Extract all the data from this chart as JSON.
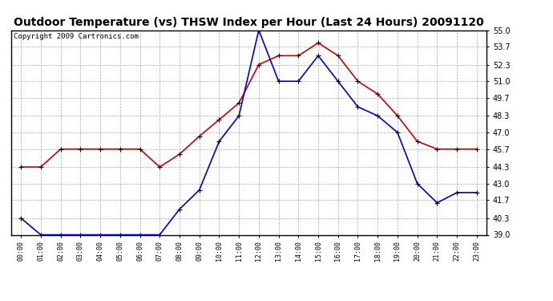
{
  "title": "Outdoor Temperature (vs) THSW Index per Hour (Last 24 Hours) 20091120",
  "copyright": "Copyright 2009 Cartronics.com",
  "hours": [
    "00:00",
    "01:00",
    "02:00",
    "03:00",
    "04:00",
    "05:00",
    "06:00",
    "07:00",
    "08:00",
    "09:00",
    "10:00",
    "11:00",
    "12:00",
    "13:00",
    "14:00",
    "15:00",
    "16:00",
    "17:00",
    "18:00",
    "19:00",
    "20:00",
    "21:00",
    "22:00",
    "23:00"
  ],
  "temp_blue": [
    40.3,
    39.0,
    39.0,
    39.0,
    39.0,
    39.0,
    39.0,
    39.0,
    41.0,
    42.5,
    46.3,
    48.3,
    55.0,
    51.0,
    51.0,
    53.0,
    51.0,
    49.0,
    48.3,
    47.0,
    43.0,
    41.5,
    42.3,
    42.3
  ],
  "thsw_red": [
    44.3,
    44.3,
    45.7,
    45.7,
    45.7,
    45.7,
    45.7,
    44.3,
    45.3,
    46.7,
    48.0,
    49.3,
    52.3,
    53.0,
    53.0,
    54.0,
    53.0,
    51.0,
    50.0,
    48.3,
    46.3,
    45.7,
    45.7,
    45.7
  ],
  "ylim_min": 39.0,
  "ylim_max": 55.0,
  "yticks": [
    39.0,
    40.3,
    41.7,
    43.0,
    44.3,
    45.7,
    47.0,
    48.3,
    49.7,
    51.0,
    52.3,
    53.7,
    55.0
  ],
  "background_color": "#ffffff",
  "plot_bg_color": "#ffffff",
  "grid_color": "#aaaaaa",
  "blue_color": "#0000cc",
  "red_color": "#cc0000",
  "title_fontsize": 10,
  "copyright_fontsize": 6.5
}
